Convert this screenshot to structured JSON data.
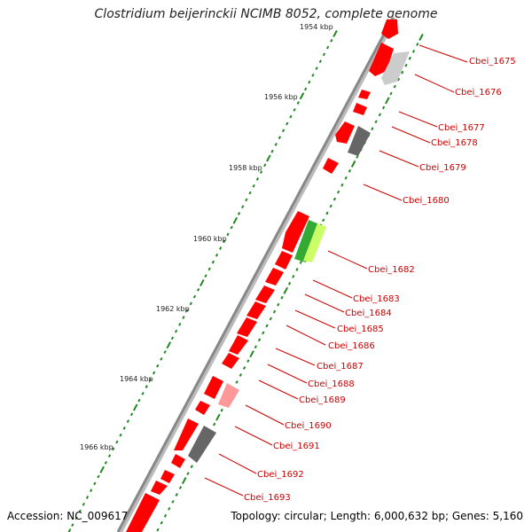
{
  "title": "Clostridium beijerinckii NCIMB 8052, complete genome",
  "footer": {
    "accession": "Accession: NC_009617",
    "summary": "Topology: circular; Length: 6,000,632 bp; Genes: 5,160"
  },
  "ruler": [
    "1954 kbp",
    "1956 kbp",
    "1958 kbp",
    "1960 kbp",
    "1962 kbp",
    "1964 kbp",
    "1966 kbp"
  ],
  "gene_labels": [
    "Cbei_1675",
    "Cbei_1676",
    "Cbei_1677",
    "Cbei_1678",
    "Cbei_1679",
    "Cbei_1680",
    "Cbei_1682",
    "Cbei_1683",
    "Cbei_1684",
    "Cbei_1685",
    "Cbei_1686",
    "Cbei_1687",
    "Cbei_1688",
    "Cbei_1689",
    "Cbei_1690",
    "Cbei_1691",
    "Cbei_1692",
    "Cbei_1693"
  ],
  "colors": {
    "cds": "#ff0000",
    "cds_light": "#ff9999",
    "hypothetical": "#cccccc",
    "dark_feature": "#666666",
    "green_feature": "#33aa33",
    "lime_feature": "#ccff66",
    "backbone": "#888888",
    "tick": "#228822",
    "label": "#cc0000"
  }
}
